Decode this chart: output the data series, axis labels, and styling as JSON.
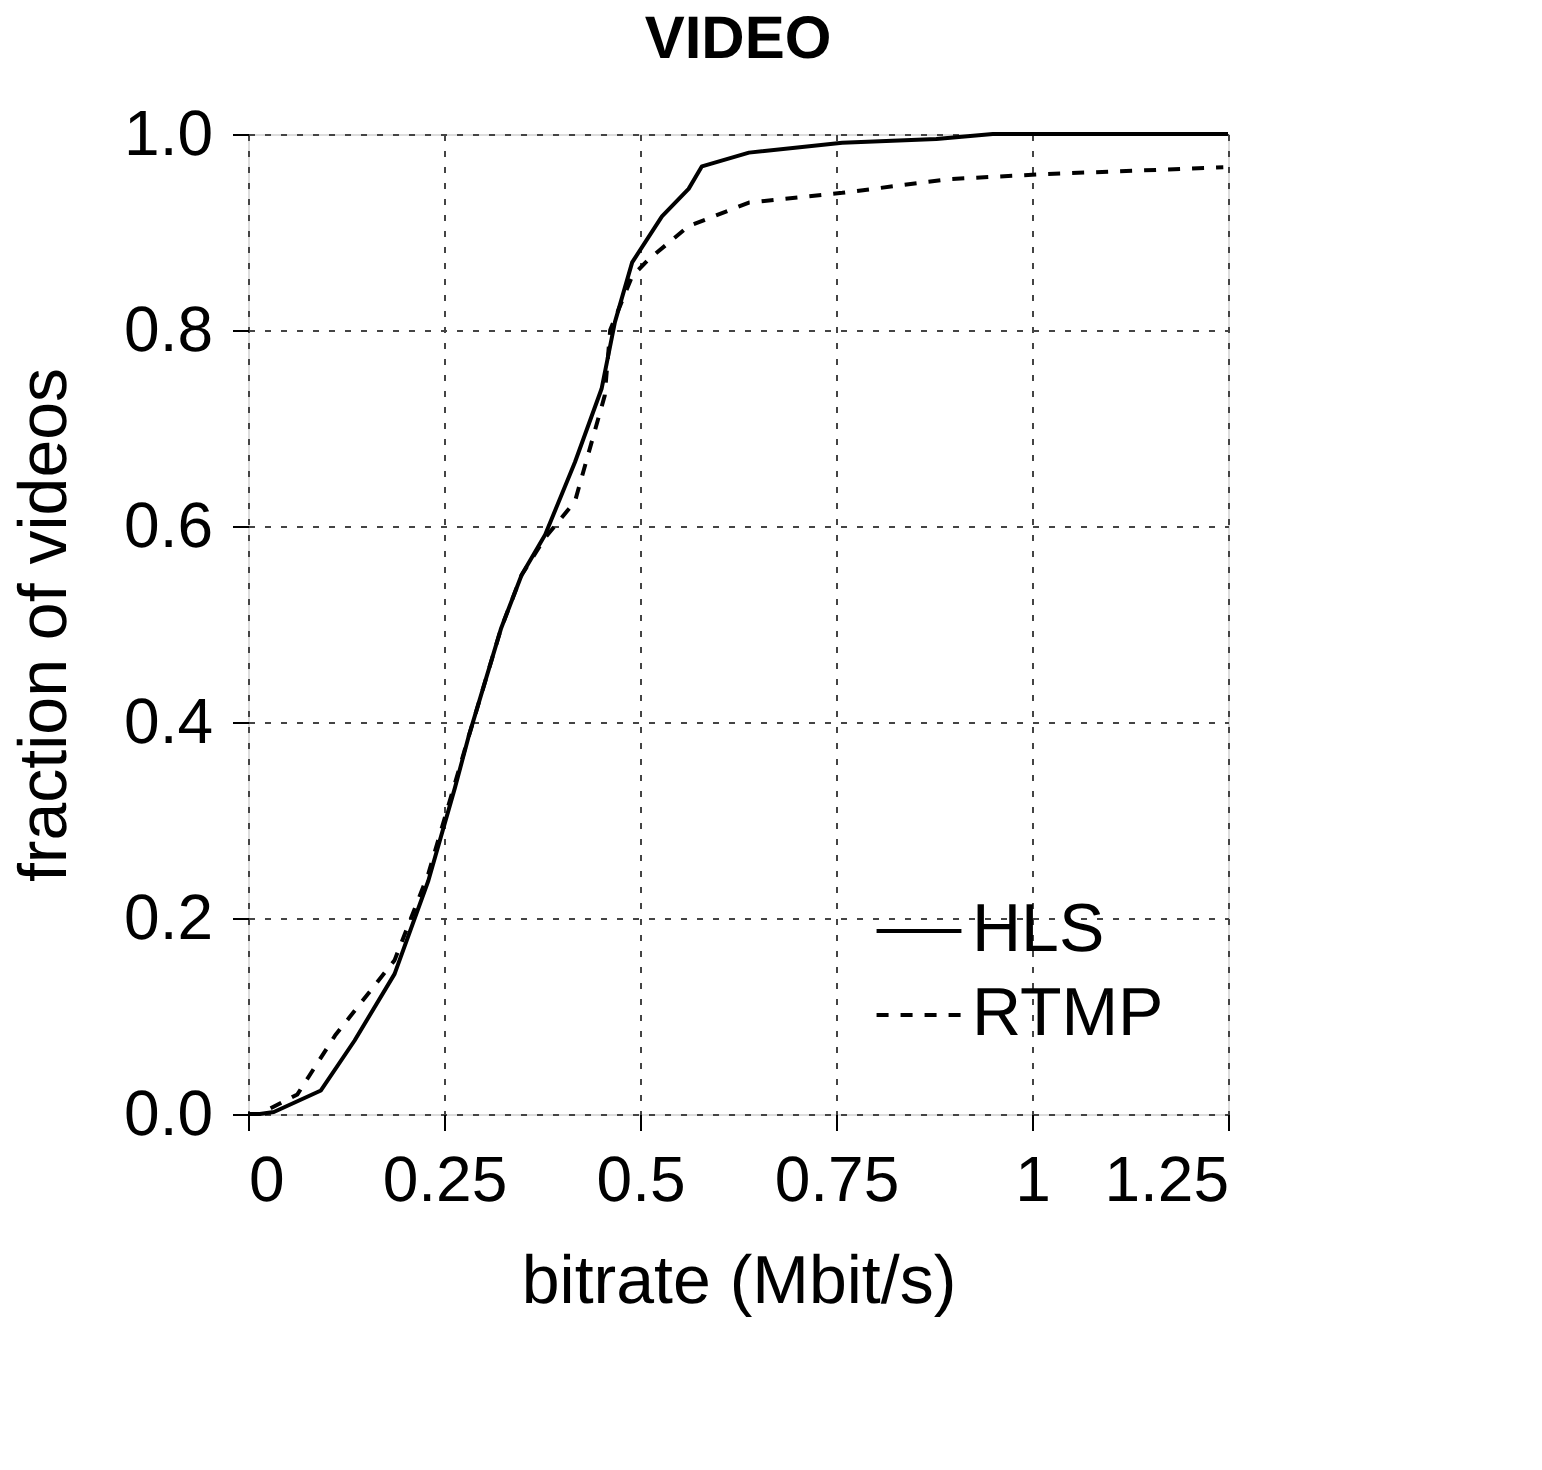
{
  "chart_data": {
    "type": "line",
    "title": "VIDEO",
    "xlabel": "bitrate (Mbit/s)",
    "ylabel": "fraction of videos",
    "series": [
      {
        "name": "HLS",
        "color": "#000000",
        "line_style": "solid",
        "x": [
          0,
          0.015,
          0.033,
          0.093,
          0.136,
          0.187,
          0.23,
          0.264,
          0.281,
          0.323,
          0.349,
          0.379,
          0.417,
          0.451,
          0.468,
          0.49,
          0.528,
          0.562,
          0.579,
          0.639,
          0.758,
          0.878,
          0.95,
          1.25
        ],
        "values": [
          0,
          0,
          0.002,
          0.024,
          0.075,
          0.143,
          0.238,
          0.333,
          0.384,
          0.496,
          0.55,
          0.591,
          0.665,
          0.74,
          0.808,
          0.869,
          0.916,
          0.944,
          0.967,
          0.981,
          0.991,
          0.995,
          1.0,
          1.0
        ]
      },
      {
        "name": "RTMP",
        "color": "#000000",
        "line_style": "dashed",
        "x": [
          0,
          0.015,
          0.063,
          0.111,
          0.187,
          0.23,
          0.281,
          0.323,
          0.349,
          0.379,
          0.417,
          0.455,
          0.462,
          0.49,
          0.511,
          0.562,
          0.639,
          0.758,
          0.895,
          1.014,
          1.244
        ],
        "values": [
          0,
          0,
          0.02,
          0.08,
          0.157,
          0.245,
          0.384,
          0.496,
          0.55,
          0.588,
          0.625,
          0.733,
          0.8,
          0.855,
          0.872,
          0.906,
          0.93,
          0.94,
          0.954,
          0.959,
          0.966
        ]
      }
    ],
    "xlim": [
      0,
      1.25
    ],
    "xticks": [
      0,
      0.25,
      0.5,
      0.75,
      1,
      1.25
    ],
    "ylim": [
      0,
      1.0
    ],
    "yticks": [
      {
        "value": 0,
        "label": "0.0"
      },
      {
        "value": 0.2,
        "label": "0.2"
      },
      {
        "value": 0.4,
        "label": "0.4"
      },
      {
        "value": 0.6,
        "label": "0.6"
      },
      {
        "value": 0.8,
        "label": "0.8"
      },
      {
        "value": 1.0,
        "label": "1.0"
      }
    ],
    "grid": true,
    "legend": "bottom right"
  }
}
